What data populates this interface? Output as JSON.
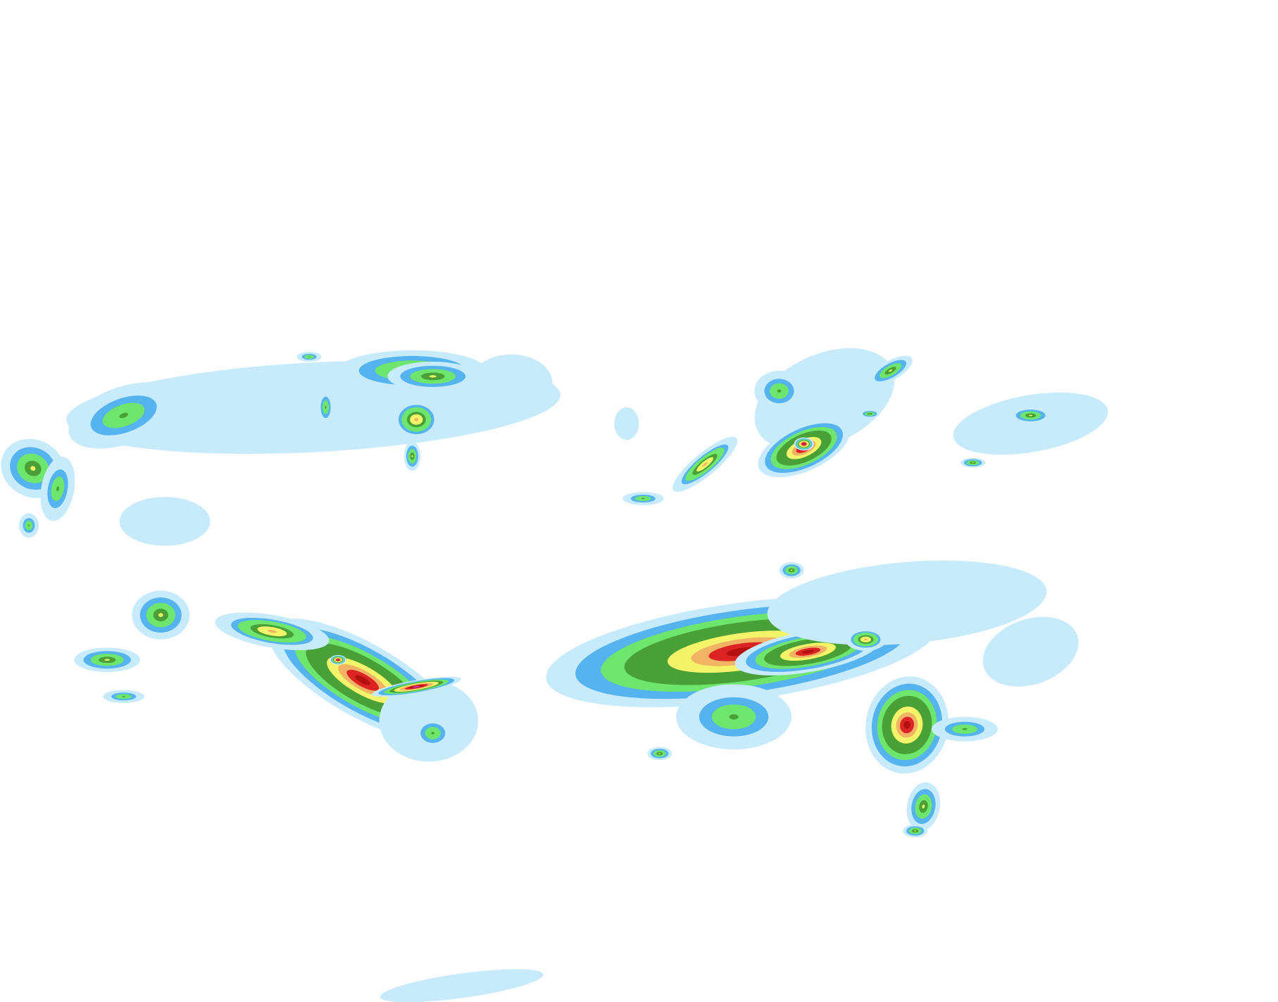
{
  "map": {
    "layer": "precipitation-radar",
    "palette": {
      "very_light": "#c8ebfc",
      "light": "#55b4f0",
      "light_moderate": "#6ee66e",
      "moderate": "#48a036",
      "moderate_heavy": "#f4f46a",
      "heavy": "#f0b464",
      "very_heavy": "#dc2424",
      "intense": "#b41010",
      "extreme": "#e040e8"
    }
  }
}
